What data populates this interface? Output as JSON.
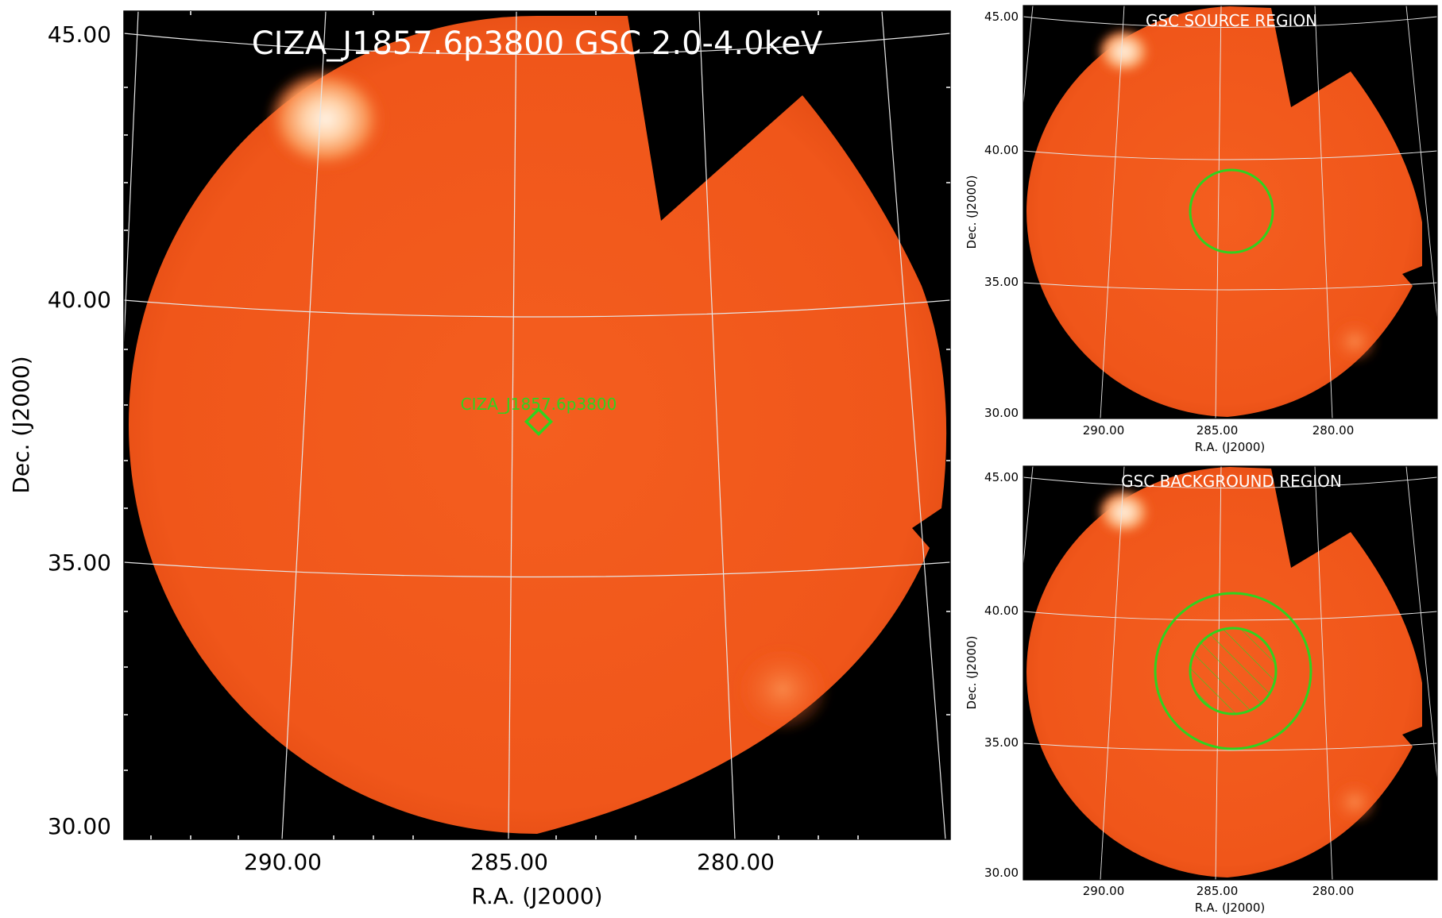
{
  "main_panel": {
    "title": "CIZA_J1857.6p3800 GSC 2.0-4.0keV",
    "source_label": "CIZA_J1857.6p3800",
    "xlabel": "R.A. (J2000)",
    "ylabel": "Dec. (J2000)",
    "xticks": [
      "290.00",
      "285.00",
      "280.00"
    ],
    "yticks": [
      "45.00",
      "40.00",
      "35.00",
      "30.00"
    ]
  },
  "source_panel": {
    "title": "GSC SOURCE REGION",
    "xlabel": "R.A. (J2000)",
    "ylabel": "Dec. (J2000)",
    "xticks": [
      "290.00",
      "285.00",
      "280.00"
    ],
    "yticks": [
      "45.00",
      "40.00",
      "35.00",
      "30.00"
    ]
  },
  "background_panel": {
    "title": "GSC BACKGROUND REGION",
    "xlabel": "R.A. (J2000)",
    "ylabel": "Dec. (J2000)",
    "xticks": [
      "290.00",
      "285.00",
      "280.00"
    ],
    "yticks": [
      "45.00",
      "40.00",
      "35.00",
      "30.00"
    ]
  },
  "colors": {
    "map_fill": "#f25a1c",
    "background": "#000000",
    "region": "#2fd31f",
    "grid": "#e6e6e6"
  }
}
